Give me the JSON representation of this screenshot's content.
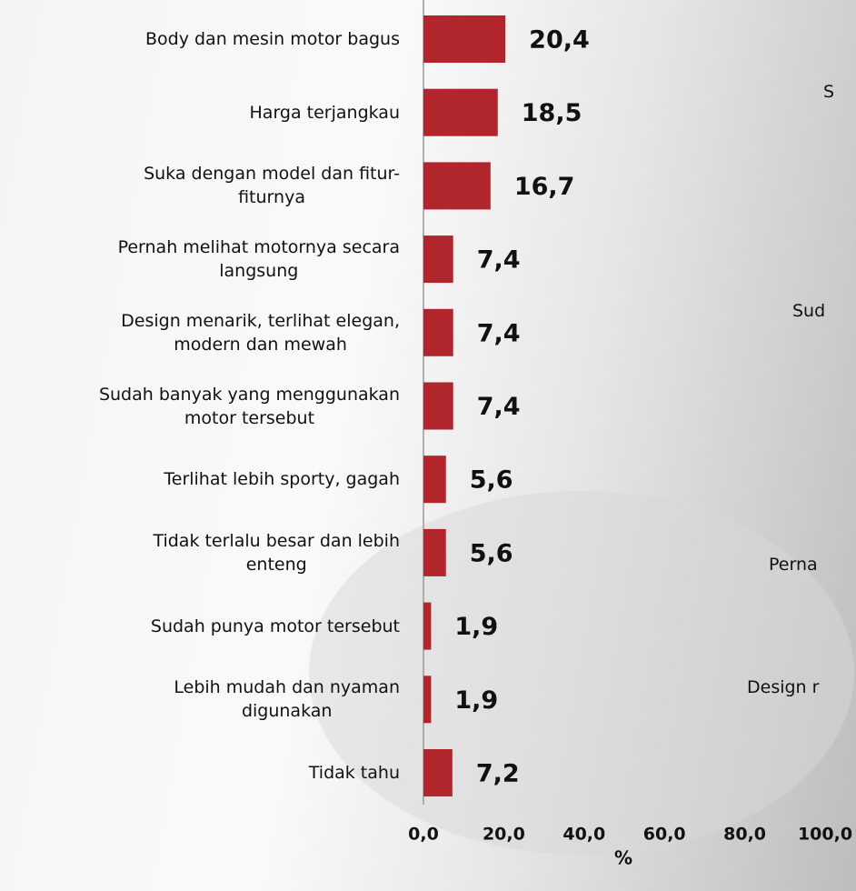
{
  "chart_data": {
    "type": "bar",
    "orientation": "horizontal",
    "categories": [
      "Body dan mesin motor bagus",
      "Harga terjangkau",
      "Suka dengan model dan fitur-\nfiturnya",
      "Pernah melihat motornya secara\nlangsung",
      "Design menarik, terlihat elegan,\nmodern dan mewah",
      "Sudah banyak yang menggunakan\nmotor tersebut",
      "Terlihat lebih sporty, gagah",
      "Tidak terlalu besar dan lebih\nenteng",
      "Sudah punya motor tersebut",
      "Lebih mudah dan nyaman\ndigunakan",
      "Tidak tahu"
    ],
    "values": [
      20.4,
      18.5,
      16.7,
      7.4,
      7.4,
      7.4,
      5.6,
      5.6,
      1.9,
      1.9,
      7.2
    ],
    "value_labels": [
      "20,4",
      "18,5",
      "16,7",
      "7,4",
      "7,4",
      "7,4",
      "5,6",
      "5,6",
      "1,9",
      "1,9",
      "7,2"
    ],
    "color": "#b0262c",
    "xlim": [
      0,
      100
    ],
    "xticks": [
      {
        "value": 0,
        "label": "0,0"
      },
      {
        "value": 20,
        "label": "20,0"
      },
      {
        "value": 40,
        "label": "40,0"
      },
      {
        "value": 60,
        "label": "60,0"
      },
      {
        "value": 80,
        "label": "80,0"
      },
      {
        "value": 100,
        "label": "100,0"
      }
    ],
    "xlabel": "%"
  },
  "background_labels": [
    "S",
    "Sud",
    "Perna",
    "Design r"
  ]
}
